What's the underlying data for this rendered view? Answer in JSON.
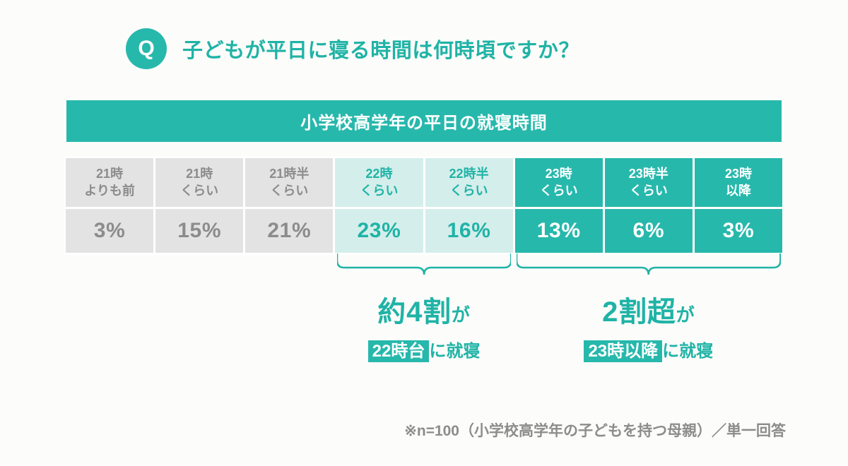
{
  "colors": {
    "teal": "#27b8ac",
    "teal_text": "#1fb3a6",
    "light_teal_bg": "#d4eeeb",
    "gray_bg": "#e3e3e3",
    "gray_text": "#8c8c8c",
    "white": "#ffffff",
    "background": "#fcfcfa"
  },
  "question": {
    "badge": "Q",
    "text": "子どもが平日に寝る時間は何時頃ですか？"
  },
  "table": {
    "title": "小学校高学年の平日の就寝時間",
    "columns": [
      {
        "label_line1": "21時",
        "label_line2": "よりも前",
        "value": "3%",
        "group": "a"
      },
      {
        "label_line1": "21時",
        "label_line2": "くらい",
        "value": "15%",
        "group": "a"
      },
      {
        "label_line1": "21時半",
        "label_line2": "くらい",
        "value": "21%",
        "group": "a"
      },
      {
        "label_line1": "22時",
        "label_line2": "くらい",
        "value": "23%",
        "group": "b"
      },
      {
        "label_line1": "22時半",
        "label_line2": "くらい",
        "value": "16%",
        "group": "b"
      },
      {
        "label_line1": "23時",
        "label_line2": "くらい",
        "value": "13%",
        "group": "c"
      },
      {
        "label_line1": "23時半",
        "label_line2": "くらい",
        "value": "6%",
        "group": "c"
      },
      {
        "label_line1": "23時",
        "label_line2": "以降",
        "value": "3%",
        "group": "c"
      }
    ],
    "groups": {
      "a": {
        "header_bg": "#e3e3e3",
        "header_fg": "#8c8c8c",
        "value_bg": "#e3e3e3",
        "value_fg": "#8c8c8c"
      },
      "b": {
        "header_bg": "#d4eeeb",
        "header_fg": "#1fb3a6",
        "value_bg": "#d4eeeb",
        "value_fg": "#1fb3a6"
      },
      "c": {
        "header_bg": "#27b8ac",
        "header_fg": "#ffffff",
        "value_bg": "#27b8ac",
        "value_fg": "#ffffff"
      }
    }
  },
  "callouts": {
    "left": {
      "big": "約4割",
      "big_suffix": "が",
      "chip": "22時台",
      "tail": "に就寝"
    },
    "right": {
      "big": "2割超",
      "big_suffix": "が",
      "chip": "23時以降",
      "tail": "に就寝"
    }
  },
  "footnote": "※n=100（小学校高学年の子どもを持つ母親）／単一回答"
}
